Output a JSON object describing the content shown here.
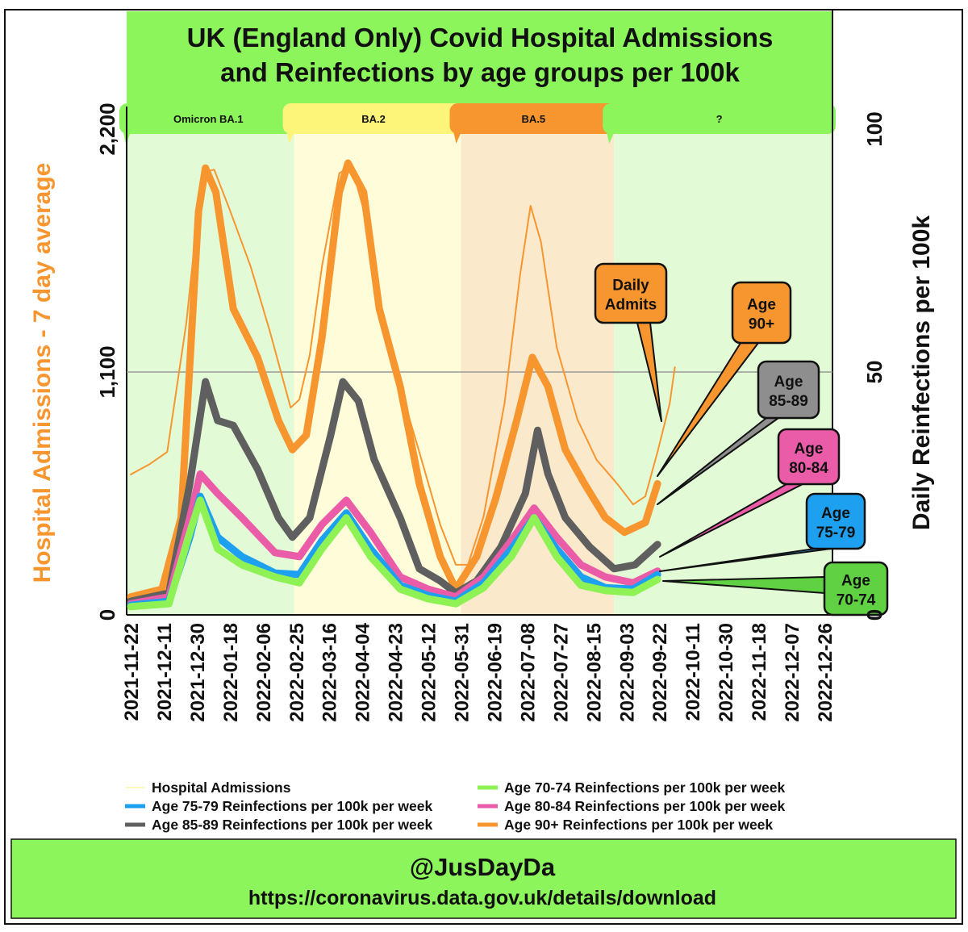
{
  "chart_data": {
    "type": "line",
    "title_lines": [
      "UK (England Only) Covid Hospital Admissions",
      "and Reinfections by age groups per 100k"
    ],
    "ylabel_left": "Hospital Admissions - 7 day average",
    "ylabel_right": "Daily Reinfections per 100k",
    "ylim_left": [
      0,
      2200
    ],
    "ylim_right": [
      0,
      100
    ],
    "yticks_left": [
      "0",
      "1,100",
      "2,200"
    ],
    "yticks_left_values": [
      0,
      1100,
      2200
    ],
    "yticks_right": [
      "0",
      "50",
      "100"
    ],
    "yticks_right_values": [
      0,
      50,
      100
    ],
    "gridline_left_value": 1100,
    "x_start_date": "2021-11-22",
    "x_unit": "days since 2021-11-22",
    "xlim_days": [
      0,
      399
    ],
    "x_ticks": [
      "2021-11-22",
      "2021-12-11",
      "2021-12-30",
      "2022-01-18",
      "2022-02-06",
      "2022-02-25",
      "2022-03-16",
      "2022-04-04",
      "2022-04-23",
      "2022-05-12",
      "2022-05-31",
      "2022-06-19",
      "2022-07-08",
      "2022-07-27",
      "2022-08-15",
      "2022-09-03",
      "2022-09-22",
      "2022-10-11",
      "2022-10-30",
      "2022-11-18",
      "2022-12-07",
      "2022-12-26"
    ],
    "x_tick_step_days": 19,
    "phases": [
      {
        "label": "Omicron BA.1",
        "start_day": 0,
        "end_day": 94,
        "tab_color": "#8df55c",
        "bg_color": "#e2fad6"
      },
      {
        "label": "BA.2",
        "start_day": 94,
        "end_day": 190,
        "tab_color": "#fcf57a",
        "bg_color": "#fefcd9"
      },
      {
        "label": "BA.5",
        "start_day": 190,
        "end_day": 278,
        "tab_color": "#f7952f",
        "bg_color": "#fbe9cb"
      },
      {
        "label": "?",
        "start_day": 278,
        "end_day": 399,
        "tab_color": "#8df55c",
        "bg_color": "#e2fad6"
      }
    ],
    "series": [
      {
        "name": "Hospital Admissions",
        "axis": "left",
        "color": "#f7952f",
        "legend_color": "#fdf6a8",
        "width": 2,
        "points": [
          [
            0,
            636
          ],
          [
            11,
            683
          ],
          [
            21,
            738
          ],
          [
            32,
            1323
          ],
          [
            41,
            2000
          ],
          [
            48,
            2017
          ],
          [
            57,
            1834
          ],
          [
            69,
            1578
          ],
          [
            80,
            1286
          ],
          [
            92,
            939
          ],
          [
            97,
            975
          ],
          [
            103,
            1177
          ],
          [
            110,
            1578
          ],
          [
            120,
            2000
          ],
          [
            127,
            2035
          ],
          [
            134,
            1834
          ],
          [
            143,
            1396
          ],
          [
            155,
            1030
          ],
          [
            166,
            738
          ],
          [
            178,
            409
          ],
          [
            187,
            227
          ],
          [
            194,
            227
          ],
          [
            203,
            446
          ],
          [
            215,
            957
          ],
          [
            224,
            1542
          ],
          [
            230,
            1853
          ],
          [
            236,
            1688
          ],
          [
            245,
            1213
          ],
          [
            257,
            884
          ],
          [
            268,
            702
          ],
          [
            280,
            592
          ],
          [
            289,
            500
          ],
          [
            296,
            537
          ],
          [
            303,
            738
          ],
          [
            310,
            957
          ],
          [
            313,
            1122
          ]
        ]
      },
      {
        "name": "Age 90+ Reinfections per 100k per week",
        "axis": "right",
        "color": "#f7952f",
        "width": 9,
        "points": [
          [
            0,
            3.7
          ],
          [
            18,
            5.3
          ],
          [
            29,
            20
          ],
          [
            39,
            83
          ],
          [
            43,
            92
          ],
          [
            49,
            87
          ],
          [
            59,
            63
          ],
          [
            73,
            53
          ],
          [
            85,
            40
          ],
          [
            93,
            34
          ],
          [
            101,
            37
          ],
          [
            110,
            57
          ],
          [
            120,
            87
          ],
          [
            125,
            93
          ],
          [
            134,
            87
          ],
          [
            143,
            63
          ],
          [
            155,
            47
          ],
          [
            166,
            27
          ],
          [
            178,
            12
          ],
          [
            187,
            5.3
          ],
          [
            199,
            12
          ],
          [
            210,
            24
          ],
          [
            222,
            40
          ],
          [
            231,
            53
          ],
          [
            240,
            47
          ],
          [
            250,
            34
          ],
          [
            261,
            27
          ],
          [
            273,
            20
          ],
          [
            284,
            17
          ],
          [
            296,
            19
          ],
          [
            303,
            27
          ]
        ]
      },
      {
        "name": "Age 85-89 Reinfections per 100k per week",
        "axis": "right",
        "color": "#5f5f5f",
        "width": 9,
        "points": [
          [
            0,
            2.8
          ],
          [
            22,
            4.5
          ],
          [
            34,
            27
          ],
          [
            43,
            48
          ],
          [
            50,
            40
          ],
          [
            59,
            39
          ],
          [
            73,
            30
          ],
          [
            85,
            20
          ],
          [
            93,
            16
          ],
          [
            103,
            20
          ],
          [
            115,
            37
          ],
          [
            122,
            48
          ],
          [
            131,
            44
          ],
          [
            140,
            32
          ],
          [
            155,
            20
          ],
          [
            166,
            9.5
          ],
          [
            178,
            7
          ],
          [
            187,
            4.5
          ],
          [
            199,
            7
          ],
          [
            213,
            14
          ],
          [
            227,
            25
          ],
          [
            234,
            38
          ],
          [
            240,
            29
          ],
          [
            250,
            20
          ],
          [
            264,
            14
          ],
          [
            278,
            9.5
          ],
          [
            290,
            10.3
          ],
          [
            303,
            14.5
          ]
        ]
      },
      {
        "name": "Age 80-84 Reinfections per 100k per week",
        "axis": "right",
        "color": "#ea5ba8",
        "width": 9,
        "points": [
          [
            0,
            2.3
          ],
          [
            22,
            3.7
          ],
          [
            34,
            20
          ],
          [
            40,
            29
          ],
          [
            50,
            25
          ],
          [
            64,
            20
          ],
          [
            83,
            12.8
          ],
          [
            97,
            12
          ],
          [
            110,
            18.6
          ],
          [
            124,
            23.6
          ],
          [
            138,
            17
          ],
          [
            155,
            7.8
          ],
          [
            171,
            5.3
          ],
          [
            187,
            3.7
          ],
          [
            203,
            7.8
          ],
          [
            219,
            15.3
          ],
          [
            232,
            22
          ],
          [
            245,
            16
          ],
          [
            259,
            10.3
          ],
          [
            273,
            7.8
          ],
          [
            289,
            6.6
          ],
          [
            303,
            9
          ]
        ]
      },
      {
        "name": "Age 75-79 Reinfections per 100k per week",
        "axis": "right",
        "color": "#1ea0f0",
        "width": 9,
        "points": [
          [
            0,
            2
          ],
          [
            22,
            2.8
          ],
          [
            34,
            16
          ],
          [
            40,
            24.4
          ],
          [
            50,
            16
          ],
          [
            64,
            12
          ],
          [
            83,
            8.6
          ],
          [
            97,
            8.3
          ],
          [
            110,
            15.3
          ],
          [
            124,
            21
          ],
          [
            138,
            13.6
          ],
          [
            155,
            6.1
          ],
          [
            171,
            4
          ],
          [
            187,
            2.8
          ],
          [
            203,
            6.6
          ],
          [
            219,
            13.6
          ],
          [
            232,
            20
          ],
          [
            245,
            13.6
          ],
          [
            259,
            7.8
          ],
          [
            273,
            5.6
          ],
          [
            289,
            5.3
          ],
          [
            303,
            8.3
          ]
        ]
      },
      {
        "name": "Age 70-74 Reinfections per 100k per week",
        "axis": "right",
        "color": "#8ef255",
        "width": 9,
        "points": [
          [
            0,
            1.7
          ],
          [
            22,
            2.3
          ],
          [
            34,
            17
          ],
          [
            40,
            23.6
          ],
          [
            50,
            13.6
          ],
          [
            64,
            10.3
          ],
          [
            83,
            7.8
          ],
          [
            97,
            6.6
          ],
          [
            110,
            13.6
          ],
          [
            124,
            20
          ],
          [
            138,
            12
          ],
          [
            155,
            5.3
          ],
          [
            171,
            3.3
          ],
          [
            187,
            2.3
          ],
          [
            203,
            5.6
          ],
          [
            219,
            12
          ],
          [
            232,
            20
          ],
          [
            245,
            12
          ],
          [
            259,
            6.1
          ],
          [
            273,
            5
          ],
          [
            289,
            4.6
          ],
          [
            303,
            7.3
          ]
        ]
      }
    ],
    "legend_order": [
      0,
      5,
      4,
      3,
      2,
      1
    ],
    "callouts": [
      {
        "lines": [
          "Daily",
          "Admits"
        ],
        "color": "#f7952f"
      },
      {
        "lines": [
          "Age",
          "90+"
        ],
        "color": "#f7952f"
      },
      {
        "lines": [
          "Age",
          "85-89"
        ],
        "color": "#8e8e8e"
      },
      {
        "lines": [
          "Age",
          "80-84"
        ],
        "color": "#ea5ba8"
      },
      {
        "lines": [
          "Age",
          "75-79"
        ],
        "color": "#1ea0f0"
      },
      {
        "lines": [
          "Age",
          "70-74"
        ],
        "color": "#5fd143"
      }
    ]
  },
  "footer": {
    "handle": "@JusDayDa",
    "source": "https://coronavirus.data.gov.uk/details/download"
  },
  "colors": {
    "banner": "#8df55c",
    "left_axis_title": "#f7952f"
  }
}
